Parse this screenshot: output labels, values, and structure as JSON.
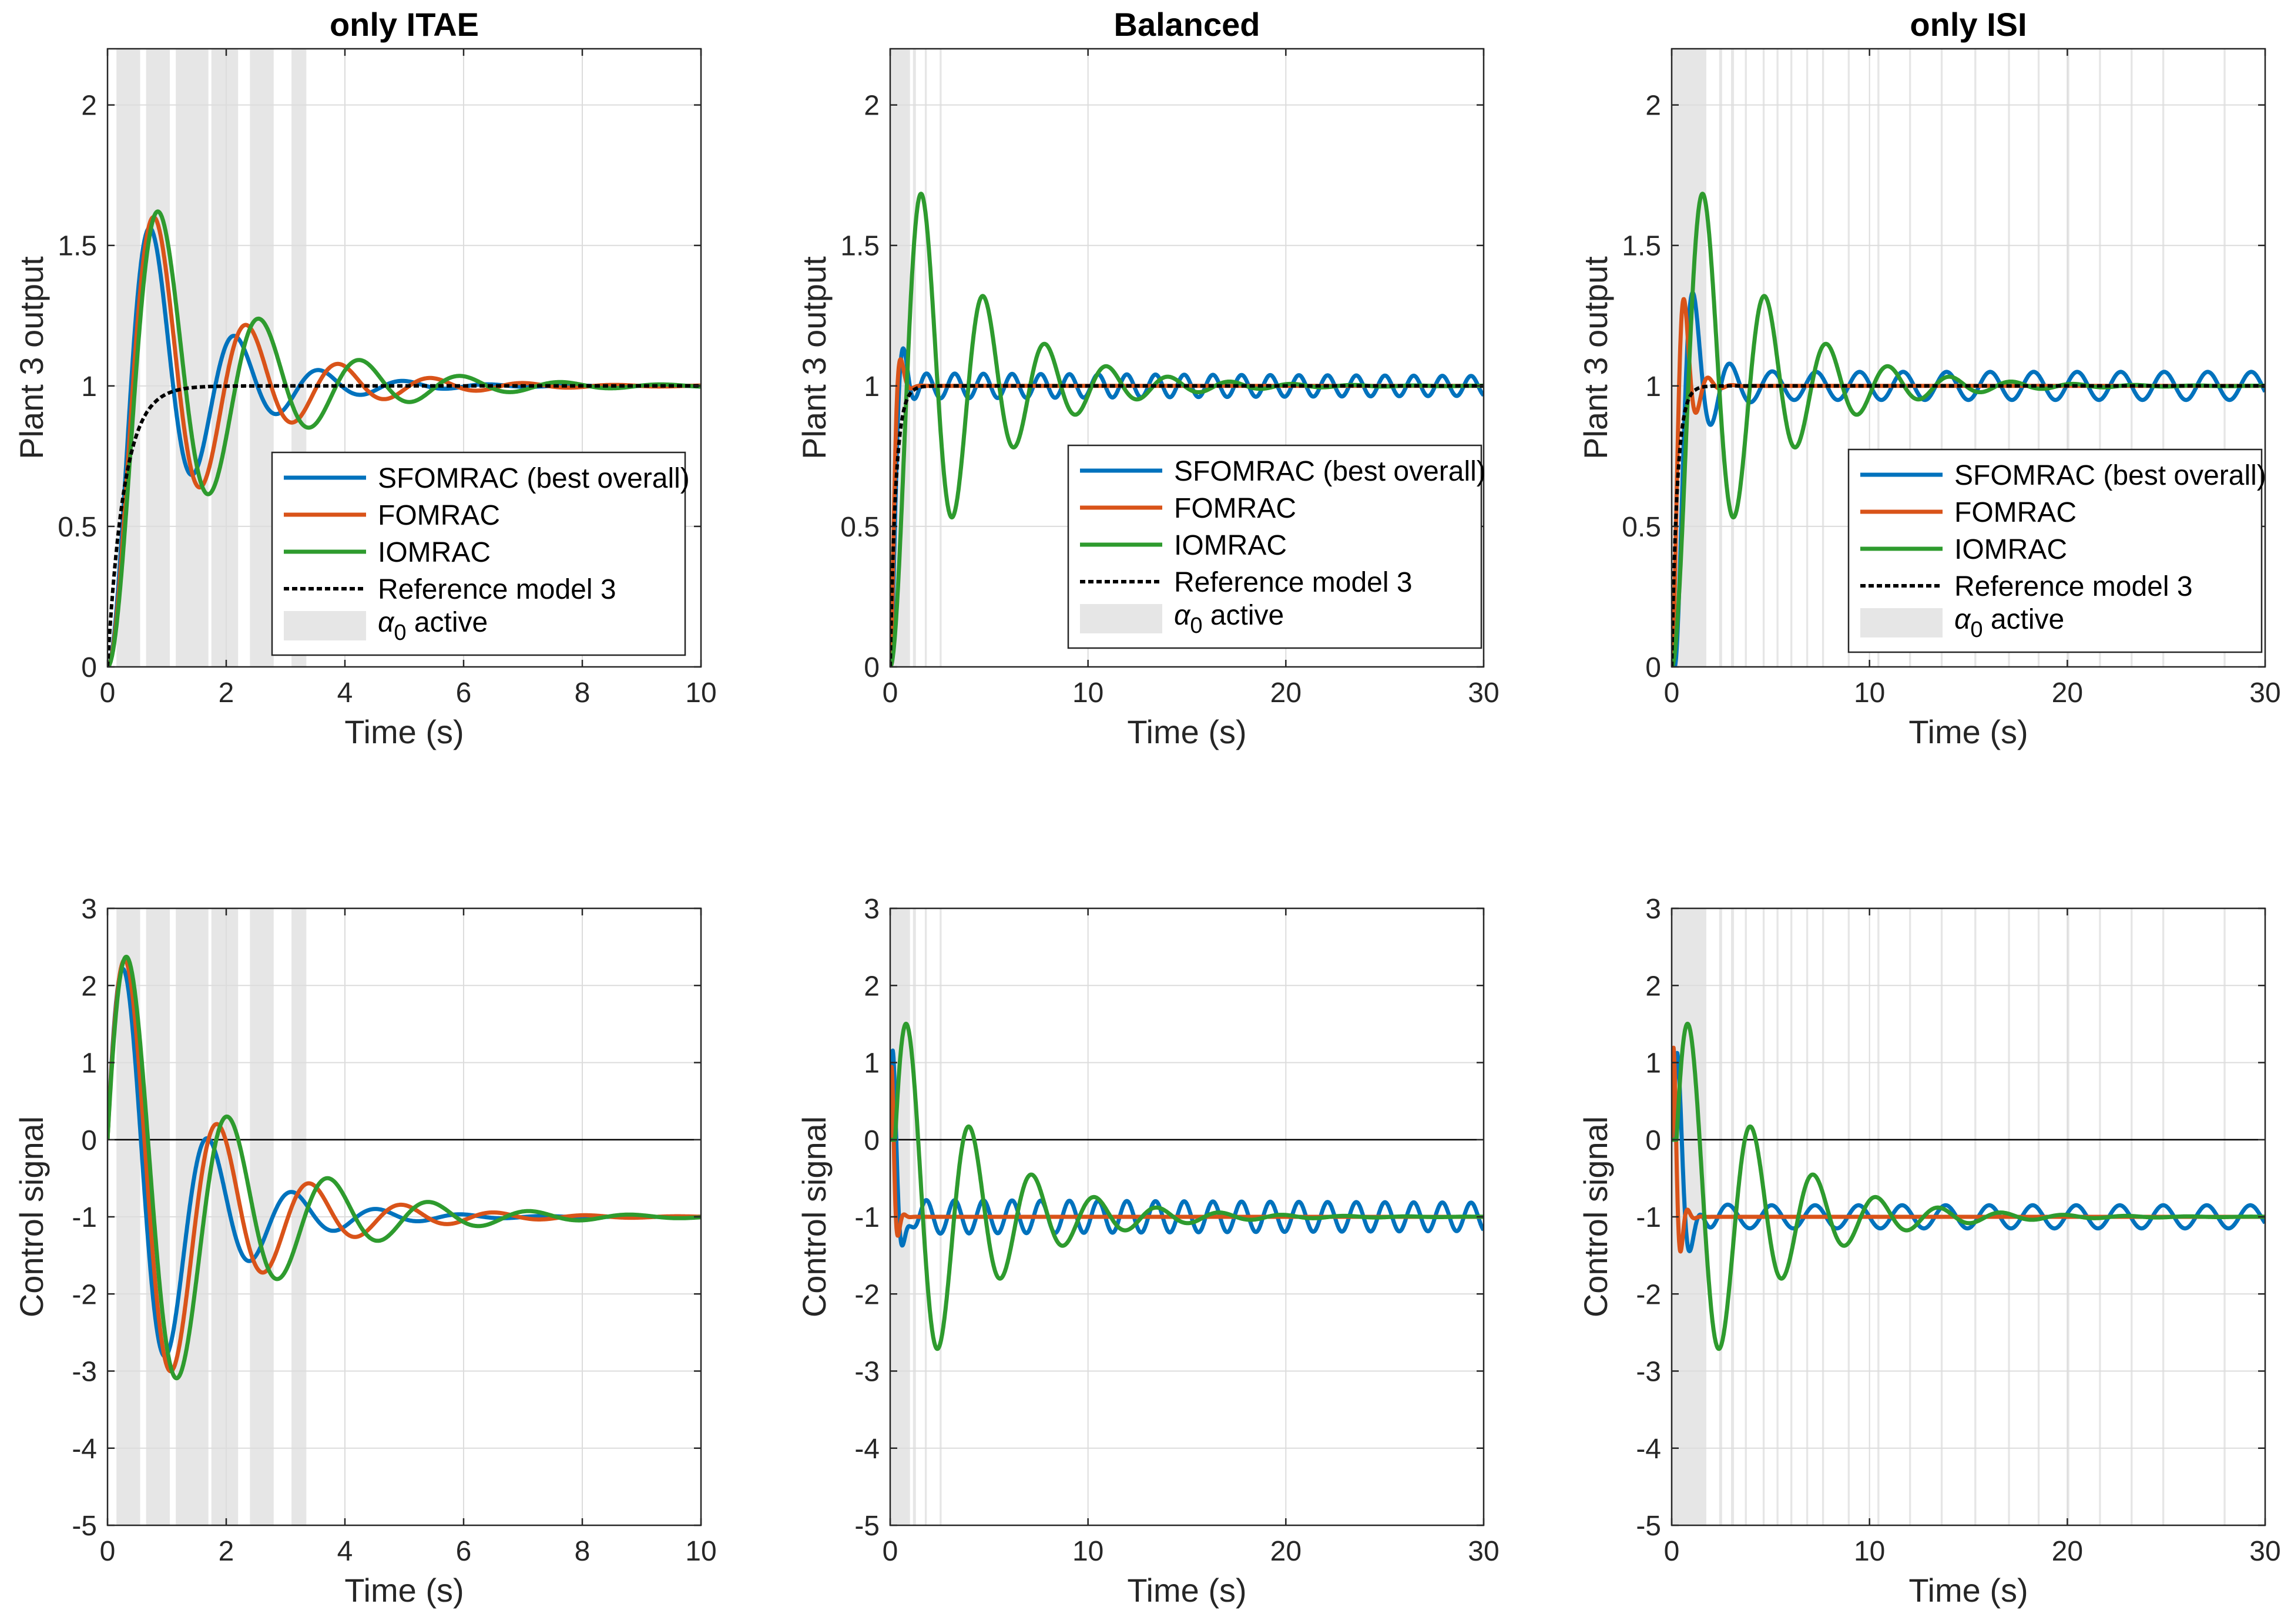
{
  "colors": {
    "sfomrac": "#0072BD",
    "fomrac": "#D95319",
    "iomrac": "#2E9B2E",
    "reference": "#000000",
    "alpha_band": "#E6E6E6",
    "grid": "#DCDCDC",
    "axes": "#262626"
  },
  "legend": {
    "entries": [
      {
        "key": "sfomrac",
        "label": "SFOMRAC (best overall)"
      },
      {
        "key": "fomrac",
        "label": "FOMRAC"
      },
      {
        "key": "iomrac",
        "label": "IOMRAC"
      },
      {
        "key": "reference",
        "label": "Reference model 3"
      },
      {
        "key": "alpha",
        "label_symbol": "α",
        "label_subscript": "0",
        "label_suffix": " active"
      }
    ]
  },
  "chart_data": [
    {
      "type": "line",
      "title": "only ITAE",
      "xlabel": "Time (s)",
      "ylabel": "Plant 3 output",
      "xlim": [
        0,
        10
      ],
      "ylim": [
        0,
        2.2
      ],
      "xticks": [
        0,
        2,
        4,
        6,
        8,
        10
      ],
      "yticks": [
        0,
        0.5,
        1,
        1.5,
        2
      ],
      "grid": true,
      "legend_location": "bottom-right",
      "alpha_active_intervals": [
        [
          0.15,
          0.55
        ],
        [
          0.65,
          1.05
        ],
        [
          1.15,
          1.7
        ],
        [
          1.75,
          2.2
        ],
        [
          2.4,
          2.8
        ],
        [
          3.1,
          3.35
        ]
      ],
      "series": [
        {
          "key": "sfomrac",
          "name": "SFOMRAC (best overall)",
          "model": {
            "kind": "step",
            "final": 1,
            "delay": 0,
            "zeta": 0.18,
            "omega": 4.5
          }
        },
        {
          "key": "fomrac",
          "name": "FOMRAC",
          "model": {
            "kind": "step",
            "final": 1,
            "delay": 0,
            "zeta": 0.16,
            "omega": 4.1
          }
        },
        {
          "key": "iomrac",
          "name": "IOMRAC",
          "model": {
            "kind": "step",
            "final": 1,
            "delay": 0,
            "zeta": 0.15,
            "omega": 3.75
          }
        },
        {
          "key": "reference",
          "name": "Reference model 3",
          "model": {
            "kind": "first_order",
            "final": 1,
            "tau": 0.28
          }
        }
      ]
    },
    {
      "type": "line",
      "title": "Balanced",
      "xlabel": "Time (s)",
      "ylabel": "Plant 3 output",
      "xlim": [
        0,
        30
      ],
      "ylim": [
        0,
        2.2
      ],
      "xticks": [
        0,
        10,
        20,
        30
      ],
      "yticks": [
        0,
        0.5,
        1,
        1.5,
        2
      ],
      "grid": true,
      "legend_location": "bottom-right",
      "alpha_active_intervals": [
        [
          0.05,
          1.0
        ],
        [
          1.15,
          1.3
        ],
        [
          1.75,
          1.85
        ],
        [
          2.5,
          2.6
        ]
      ],
      "series": [
        {
          "key": "sfomrac",
          "name": "SFOMRAC (best overall)",
          "model": {
            "kind": "step_osc",
            "final": 1,
            "delay": 0,
            "zeta": 0.55,
            "omega": 5.5,
            "osc_amp": 0.045,
            "osc_period": 1.45,
            "osc_decay": 0.008
          }
        },
        {
          "key": "fomrac",
          "name": "FOMRAC",
          "model": {
            "kind": "step",
            "final": 1,
            "delay": 0,
            "zeta": 0.6,
            "omega": 7.5
          }
        },
        {
          "key": "iomrac",
          "name": "IOMRAC",
          "model": {
            "kind": "step",
            "final": 1,
            "delay": 0,
            "zeta": 0.12,
            "omega": 2.03
          }
        },
        {
          "key": "reference",
          "name": "Reference model 3",
          "model": {
            "kind": "first_order",
            "final": 1,
            "tau": 0.28
          }
        }
      ]
    },
    {
      "type": "line",
      "title": "only ISI",
      "xlabel": "Time (s)",
      "ylabel": "Plant 3 output",
      "xlim": [
        0,
        30
      ],
      "ylim": [
        0,
        2.2
      ],
      "xticks": [
        0,
        10,
        20,
        30
      ],
      "yticks": [
        0,
        0.5,
        1,
        1.5,
        2
      ],
      "grid": true,
      "legend_location": "bottom-right",
      "alpha_active_intervals": [
        [
          0.0,
          1.75
        ],
        [
          2.4,
          2.55
        ],
        [
          3.0,
          3.15
        ],
        [
          3.7,
          3.8
        ],
        [
          4.6,
          4.7
        ],
        [
          5.3,
          5.4
        ],
        [
          6.0,
          6.1
        ],
        [
          6.8,
          6.9
        ],
        [
          7.6,
          7.7
        ],
        [
          8.9,
          9.0
        ],
        [
          10.4,
          10.5
        ],
        [
          12.0,
          12.1
        ],
        [
          13.6,
          13.7
        ],
        [
          15.3,
          15.4
        ],
        [
          17.0,
          17.1
        ],
        [
          18.5,
          18.6
        ],
        [
          20.0,
          20.1
        ],
        [
          21.6,
          21.7
        ],
        [
          23.2,
          23.3
        ],
        [
          24.8,
          24.9
        ],
        [
          27.9,
          28.0
        ]
      ],
      "series": [
        {
          "key": "sfomrac",
          "name": "SFOMRAC (best overall)",
          "model": {
            "kind": "step_osc",
            "final": 1,
            "delay": 0.15,
            "zeta": 0.35,
            "omega": 3.6,
            "osc_amp": 0.05,
            "osc_period": 2.2,
            "osc_decay": 0.0
          }
        },
        {
          "key": "fomrac",
          "name": "FOMRAC",
          "model": {
            "kind": "step",
            "final": 1,
            "delay": 0,
            "zeta": 0.35,
            "omega": 5.5
          }
        },
        {
          "key": "iomrac",
          "name": "IOMRAC",
          "model": {
            "kind": "step",
            "final": 1,
            "delay": 0,
            "zeta": 0.12,
            "omega": 2.03
          }
        },
        {
          "key": "reference",
          "name": "Reference model 3",
          "model": {
            "kind": "first_order",
            "final": 1,
            "tau": 0.28
          }
        }
      ]
    },
    {
      "type": "line",
      "title": "",
      "xlabel": "Time (s)",
      "ylabel": "Control signal",
      "xlim": [
        0,
        10
      ],
      "ylim": [
        -5,
        3
      ],
      "xticks": [
        0,
        2,
        4,
        6,
        8,
        10
      ],
      "yticks": [
        -5,
        -4,
        -3,
        -2,
        -1,
        0,
        1,
        2,
        3
      ],
      "grid": true,
      "zero_line": true,
      "alpha_active_intervals": [
        [
          0.15,
          0.55
        ],
        [
          0.65,
          1.05
        ],
        [
          1.15,
          1.7
        ],
        [
          1.75,
          2.2
        ],
        [
          2.4,
          2.8
        ],
        [
          3.1,
          3.35
        ]
      ],
      "series": [
        {
          "key": "sfomrac",
          "name": "SFOMRAC (best overall)",
          "model": {
            "kind": "control",
            "final": -1,
            "amp": 3.9,
            "omega": 4.5,
            "zeta": 0.18,
            "delay": 0,
            "init": 0
          }
        },
        {
          "key": "fomrac",
          "name": "FOMRAC",
          "model": {
            "kind": "control",
            "final": -1,
            "amp": 3.95,
            "omega": 4.1,
            "zeta": 0.16,
            "delay": 0,
            "init": 0
          }
        },
        {
          "key": "iomrac",
          "name": "IOMRAC",
          "model": {
            "kind": "control",
            "final": -1,
            "amp": 3.95,
            "omega": 3.75,
            "zeta": 0.15,
            "delay": 0,
            "init": 0
          }
        }
      ]
    },
    {
      "type": "line",
      "title": "",
      "xlabel": "Time (s)",
      "ylabel": "Control signal",
      "xlim": [
        0,
        30
      ],
      "ylim": [
        -5,
        3
      ],
      "xticks": [
        0,
        10,
        20,
        30
      ],
      "yticks": [
        -5,
        -4,
        -3,
        -2,
        -1,
        0,
        1,
        2,
        3
      ],
      "grid": true,
      "zero_line": true,
      "alpha_active_intervals": [
        [
          0.05,
          1.0
        ],
        [
          1.15,
          1.3
        ],
        [
          1.75,
          1.85
        ],
        [
          2.5,
          2.6
        ]
      ],
      "series": [
        {
          "key": "sfomrac",
          "name": "SFOMRAC (best overall)",
          "model": {
            "kind": "control_osc",
            "final": -1,
            "amp": 3.5,
            "omega": 7.5,
            "zeta": 0.45,
            "delay": 0,
            "init": 0,
            "osc_amp": 0.22,
            "osc_period": 1.45,
            "osc_decay": 0.006
          }
        },
        {
          "key": "fomrac",
          "name": "FOMRAC",
          "model": {
            "kind": "control",
            "final": -1,
            "amp": 3.6,
            "omega": 12.0,
            "zeta": 0.55,
            "delay": 0,
            "init": 0
          }
        },
        {
          "key": "iomrac",
          "name": "IOMRAC",
          "model": {
            "kind": "control",
            "final": -1,
            "amp": 2.7,
            "omega": 2.0,
            "zeta": 0.12,
            "delay": 0.25,
            "init": 0
          }
        }
      ]
    },
    {
      "type": "line",
      "title": "",
      "xlabel": "Time (s)",
      "ylabel": "Control signal",
      "xlim": [
        0,
        30
      ],
      "ylim": [
        -5,
        3
      ],
      "xticks": [
        0,
        10,
        20,
        30
      ],
      "yticks": [
        -5,
        -4,
        -3,
        -2,
        -1,
        0,
        1,
        2,
        3
      ],
      "grid": true,
      "zero_line": true,
      "alpha_active_intervals": [
        [
          0.0,
          1.75
        ],
        [
          2.4,
          2.55
        ],
        [
          3.0,
          3.15
        ],
        [
          3.7,
          3.8
        ],
        [
          4.6,
          4.7
        ],
        [
          5.3,
          5.4
        ],
        [
          6.0,
          6.1
        ],
        [
          6.8,
          6.9
        ],
        [
          7.6,
          7.7
        ],
        [
          8.9,
          9.0
        ],
        [
          10.4,
          10.5
        ],
        [
          12.0,
          12.1
        ],
        [
          13.6,
          13.7
        ],
        [
          15.3,
          15.4
        ],
        [
          17.0,
          17.1
        ],
        [
          18.5,
          18.6
        ],
        [
          20.0,
          20.1
        ],
        [
          21.6,
          21.7
        ],
        [
          23.2,
          23.3
        ],
        [
          24.8,
          24.9
        ],
        [
          27.9,
          28.0
        ]
      ],
      "series": [
        {
          "key": "sfomrac",
          "name": "SFOMRAC (best overall)",
          "model": {
            "kind": "control_osc",
            "final": -1,
            "amp": 3.2,
            "omega": 5.5,
            "zeta": 0.4,
            "delay": 0.1,
            "init": 0,
            "osc_amp": 0.15,
            "osc_period": 2.2,
            "osc_decay": 0.0
          }
        },
        {
          "key": "fomrac",
          "name": "FOMRAC",
          "model": {
            "kind": "control",
            "final": -1,
            "amp": 3.6,
            "omega": 10.0,
            "zeta": 0.45,
            "delay": 0,
            "init": 0
          }
        },
        {
          "key": "iomrac",
          "name": "IOMRAC",
          "model": {
            "kind": "control",
            "final": -1,
            "amp": 2.7,
            "omega": 2.0,
            "zeta": 0.12,
            "delay": 0.25,
            "init": 0
          }
        }
      ]
    }
  ]
}
